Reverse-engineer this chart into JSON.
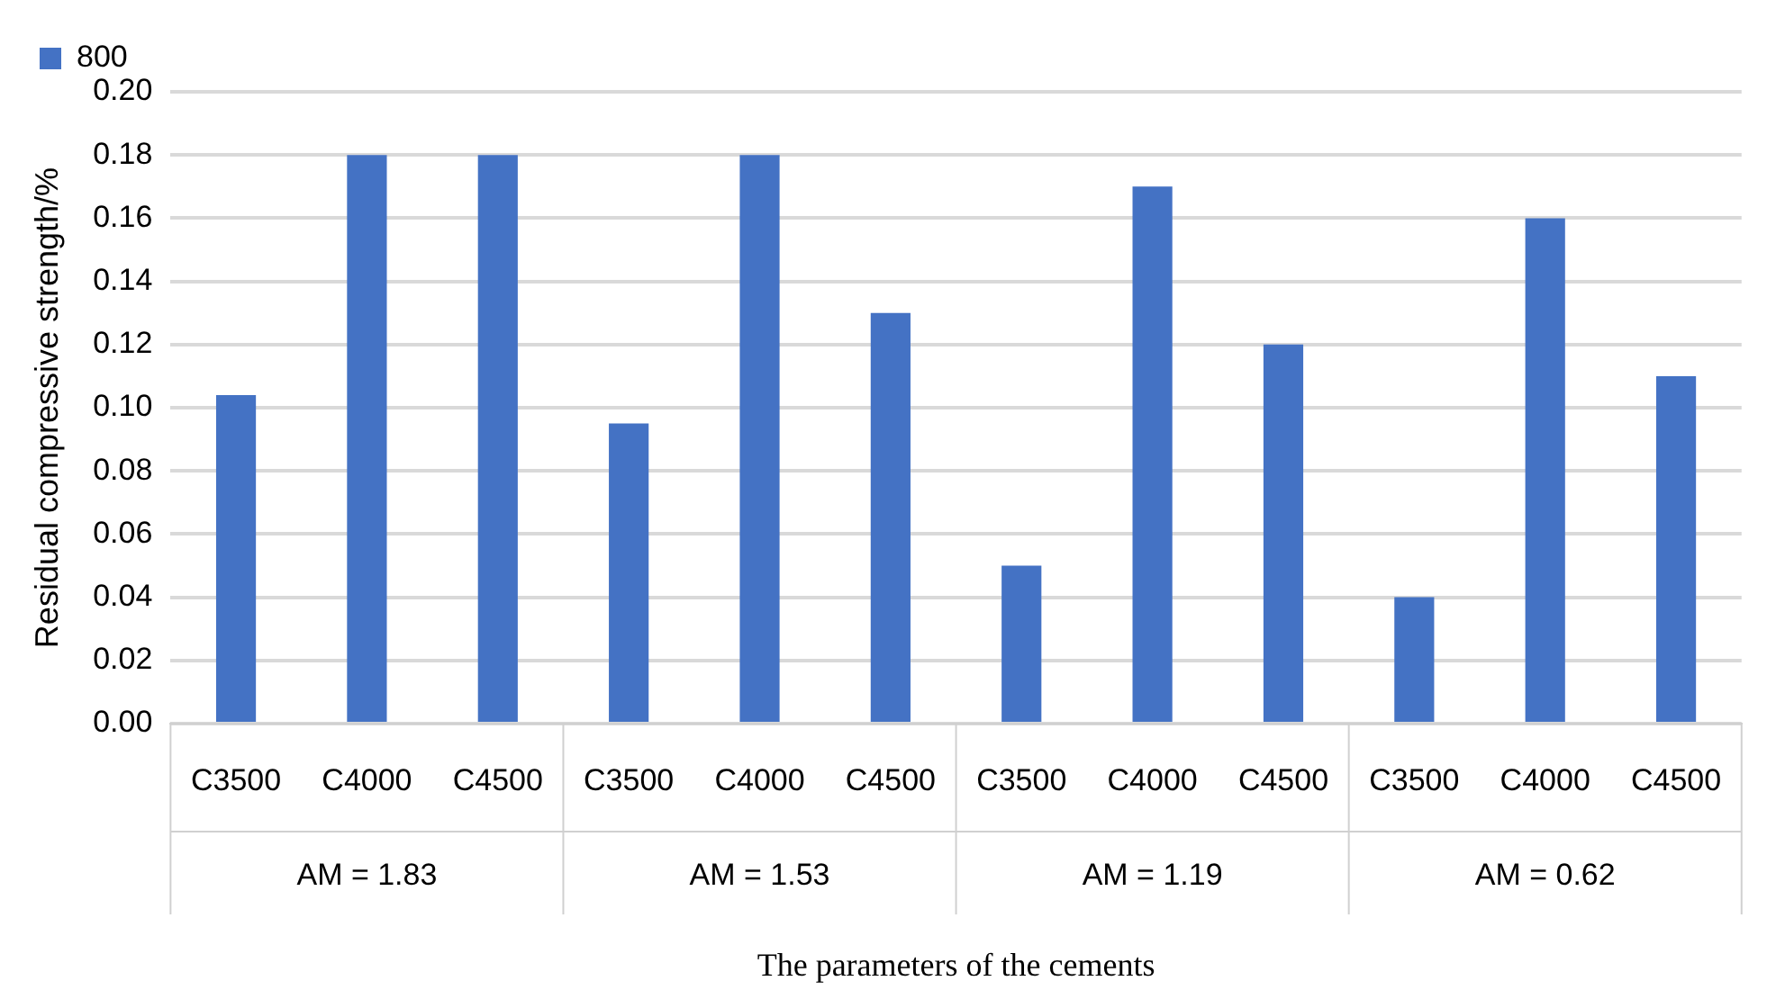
{
  "chart_data": {
    "type": "bar",
    "xlabel": "The parameters of the cements",
    "ylabel": "Residual compressive strength/%",
    "categories": [
      "C3500",
      "C4000",
      "C4500",
      "C3500",
      "C4000",
      "C4500",
      "C3500",
      "C4000",
      "C4500",
      "C3500",
      "C4000",
      "C4500"
    ],
    "series": [
      {
        "name": "800",
        "color": "#4472c4",
        "values": [
          0.104,
          0.18,
          0.18,
          0.095,
          0.18,
          0.13,
          0.05,
          0.17,
          0.12,
          0.04,
          0.16,
          0.11
        ]
      }
    ],
    "annotations": [
      "AM = 1.83",
      "AM = 1.53",
      "AM = 1.19",
      "AM = 0.62"
    ],
    "ylim": [
      0,
      0.2
    ],
    "yticks": [
      {
        "value": 0,
        "label": "0.00"
      },
      {
        "value": 0.02,
        "label": "0.02"
      },
      {
        "value": 0.04,
        "label": "0.04"
      },
      {
        "value": 0.06,
        "label": "0.06"
      },
      {
        "value": 0.08,
        "label": "0.08"
      },
      {
        "value": 0.1,
        "label": "0.10"
      },
      {
        "value": 0.12,
        "label": "0.12"
      },
      {
        "value": 0.14,
        "label": "0.14"
      },
      {
        "value": 0.16,
        "label": "0.16"
      },
      {
        "value": 0.18,
        "label": "0.18"
      },
      {
        "value": 0.2,
        "label": "0.20"
      }
    ],
    "grid": "y",
    "legend": "top left"
  }
}
